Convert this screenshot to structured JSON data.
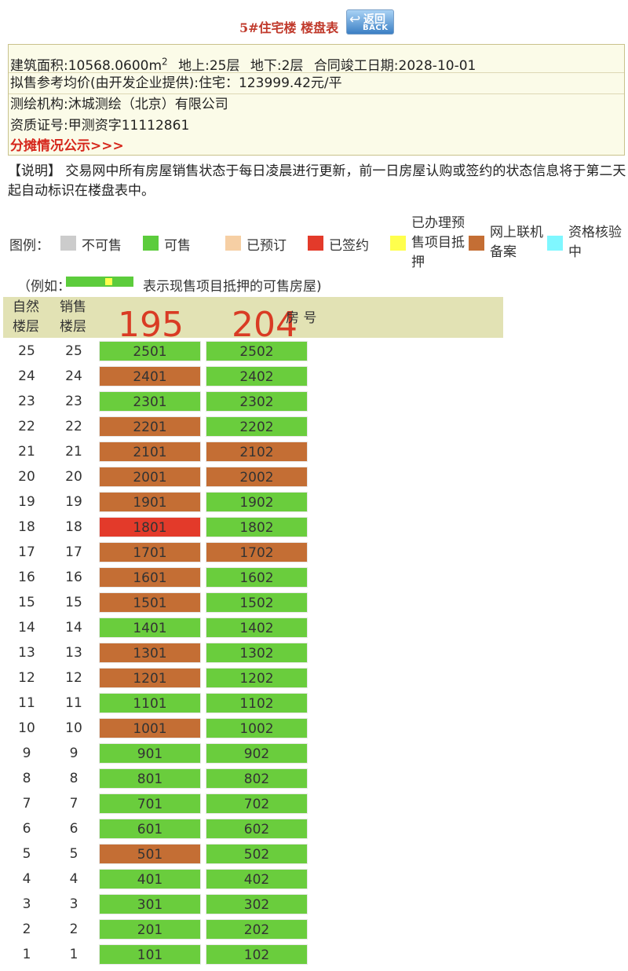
{
  "header": {
    "title": "5#住宅楼 楼盘表",
    "back_button": {
      "arrow": "↩",
      "cn": "返回",
      "en": "BACK"
    }
  },
  "info": {
    "area_label": "建筑面积:10568.0600m",
    "area_sup": "2",
    "floors_text": "地上:25层",
    "basement_text": "地下:2层",
    "completion_text": "合同竣工日期:2028-10-01",
    "price_text": "拟售参考均价(由开发企业提供):住宅：123999.42元/平",
    "surveyor_text": "测绘机构:沐城测绘（北京）有限公司",
    "cert_text": "资质证号:甲测资字11112861",
    "allocation_link": "分摊情况公示>>>"
  },
  "note": "【说明】 交易网中所有房屋销售状态于每日凌晨进行更新，前一日房屋认购或签约的状态信息将于第二天起自动标识在楼盘表中。",
  "legend": {
    "title": "图例：",
    "items": [
      {
        "label": "不可售",
        "color": "#cccccc"
      },
      {
        "label": "可售",
        "color": "#5ccc3c"
      },
      {
        "label": "已预订",
        "color": "#f6cfa4"
      },
      {
        "label": "已签约",
        "color": "#e33a2a"
      },
      {
        "label_lines": [
          "已办理预",
          "售项目抵",
          "押"
        ],
        "color": "#ffff4d"
      },
      {
        "label_lines": [
          "网上联机",
          "备案"
        ],
        "color": "#c46e34"
      },
      {
        "label_lines": [
          "资格核验",
          "中"
        ],
        "color": "#7ff7ff"
      }
    ]
  },
  "example": {
    "prefix": "（例如：",
    "suffix": "表示现售项目抵押的可售房屋)"
  },
  "table_header": {
    "natural_floor": [
      "自然",
      "楼层"
    ],
    "sales_floor": [
      "销售",
      "楼层"
    ],
    "room_no": "房 号",
    "annotation_left": "195",
    "annotation_right": "204"
  },
  "status_colors": {
    "sale": "#6acd3d",
    "filed": "#c46e34",
    "signed": "#e33a2a"
  },
  "units": [
    {
      "floor": "25",
      "sales_floor": "25",
      "rooms": [
        {
          "no": "2501",
          "status": "sale"
        },
        {
          "no": "2502",
          "status": "sale"
        }
      ]
    },
    {
      "floor": "24",
      "sales_floor": "24",
      "rooms": [
        {
          "no": "2401",
          "status": "filed"
        },
        {
          "no": "2402",
          "status": "sale"
        }
      ]
    },
    {
      "floor": "23",
      "sales_floor": "23",
      "rooms": [
        {
          "no": "2301",
          "status": "sale"
        },
        {
          "no": "2302",
          "status": "sale"
        }
      ]
    },
    {
      "floor": "22",
      "sales_floor": "22",
      "rooms": [
        {
          "no": "2201",
          "status": "filed"
        },
        {
          "no": "2202",
          "status": "sale"
        }
      ]
    },
    {
      "floor": "21",
      "sales_floor": "21",
      "rooms": [
        {
          "no": "2101",
          "status": "filed"
        },
        {
          "no": "2102",
          "status": "filed"
        }
      ]
    },
    {
      "floor": "20",
      "sales_floor": "20",
      "rooms": [
        {
          "no": "2001",
          "status": "filed"
        },
        {
          "no": "2002",
          "status": "filed"
        }
      ]
    },
    {
      "floor": "19",
      "sales_floor": "19",
      "rooms": [
        {
          "no": "1901",
          "status": "filed"
        },
        {
          "no": "1902",
          "status": "sale"
        }
      ]
    },
    {
      "floor": "18",
      "sales_floor": "18",
      "rooms": [
        {
          "no": "1801",
          "status": "signed"
        },
        {
          "no": "1802",
          "status": "sale"
        }
      ]
    },
    {
      "floor": "17",
      "sales_floor": "17",
      "rooms": [
        {
          "no": "1701",
          "status": "filed"
        },
        {
          "no": "1702",
          "status": "filed"
        }
      ]
    },
    {
      "floor": "16",
      "sales_floor": "16",
      "rooms": [
        {
          "no": "1601",
          "status": "filed"
        },
        {
          "no": "1602",
          "status": "sale"
        }
      ]
    },
    {
      "floor": "15",
      "sales_floor": "15",
      "rooms": [
        {
          "no": "1501",
          "status": "filed"
        },
        {
          "no": "1502",
          "status": "sale"
        }
      ]
    },
    {
      "floor": "14",
      "sales_floor": "14",
      "rooms": [
        {
          "no": "1401",
          "status": "sale"
        },
        {
          "no": "1402",
          "status": "sale"
        }
      ]
    },
    {
      "floor": "13",
      "sales_floor": "13",
      "rooms": [
        {
          "no": "1301",
          "status": "filed"
        },
        {
          "no": "1302",
          "status": "sale"
        }
      ]
    },
    {
      "floor": "12",
      "sales_floor": "12",
      "rooms": [
        {
          "no": "1201",
          "status": "filed"
        },
        {
          "no": "1202",
          "status": "sale"
        }
      ]
    },
    {
      "floor": "11",
      "sales_floor": "11",
      "rooms": [
        {
          "no": "1101",
          "status": "sale"
        },
        {
          "no": "1102",
          "status": "sale"
        }
      ]
    },
    {
      "floor": "10",
      "sales_floor": "10",
      "rooms": [
        {
          "no": "1001",
          "status": "filed"
        },
        {
          "no": "1002",
          "status": "sale"
        }
      ]
    },
    {
      "floor": "9",
      "sales_floor": "9",
      "rooms": [
        {
          "no": "901",
          "status": "sale"
        },
        {
          "no": "902",
          "status": "sale"
        }
      ]
    },
    {
      "floor": "8",
      "sales_floor": "8",
      "rooms": [
        {
          "no": "801",
          "status": "sale"
        },
        {
          "no": "802",
          "status": "sale"
        }
      ]
    },
    {
      "floor": "7",
      "sales_floor": "7",
      "rooms": [
        {
          "no": "701",
          "status": "sale"
        },
        {
          "no": "702",
          "status": "sale"
        }
      ]
    },
    {
      "floor": "6",
      "sales_floor": "6",
      "rooms": [
        {
          "no": "601",
          "status": "sale"
        },
        {
          "no": "602",
          "status": "sale"
        }
      ]
    },
    {
      "floor": "5",
      "sales_floor": "5",
      "rooms": [
        {
          "no": "501",
          "status": "filed"
        },
        {
          "no": "502",
          "status": "sale"
        }
      ]
    },
    {
      "floor": "4",
      "sales_floor": "4",
      "rooms": [
        {
          "no": "401",
          "status": "sale"
        },
        {
          "no": "402",
          "status": "sale"
        }
      ]
    },
    {
      "floor": "3",
      "sales_floor": "3",
      "rooms": [
        {
          "no": "301",
          "status": "sale"
        },
        {
          "no": "302",
          "status": "sale"
        }
      ]
    },
    {
      "floor": "2",
      "sales_floor": "2",
      "rooms": [
        {
          "no": "201",
          "status": "sale"
        },
        {
          "no": "202",
          "status": "sale"
        }
      ]
    },
    {
      "floor": "1",
      "sales_floor": "1",
      "rooms": [
        {
          "no": "101",
          "status": "sale"
        },
        {
          "no": "102",
          "status": "sale"
        }
      ]
    }
  ]
}
